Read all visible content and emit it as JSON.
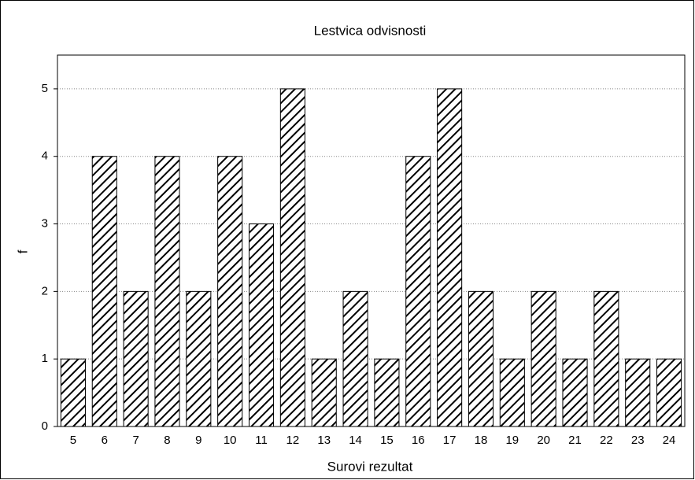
{
  "chart_data": {
    "type": "bar",
    "title": "Lestvica odvisnosti",
    "x_label": "Surovi rezultat",
    "y_label": "f",
    "categories": [
      "5",
      "6",
      "7",
      "8",
      "9",
      "10",
      "11",
      "12",
      "13",
      "14",
      "15",
      "16",
      "17",
      "18",
      "19",
      "20",
      "21",
      "22",
      "23",
      "24"
    ],
    "values": [
      1,
      4,
      2,
      4,
      2,
      4,
      3,
      5,
      1,
      2,
      1,
      4,
      5,
      2,
      1,
      2,
      1,
      2,
      1,
      1
    ],
    "color": "#000000",
    "ylim": [
      0,
      5.5
    ],
    "yticks": [
      0,
      1,
      2,
      3,
      4,
      5
    ],
    "grid": true
  }
}
